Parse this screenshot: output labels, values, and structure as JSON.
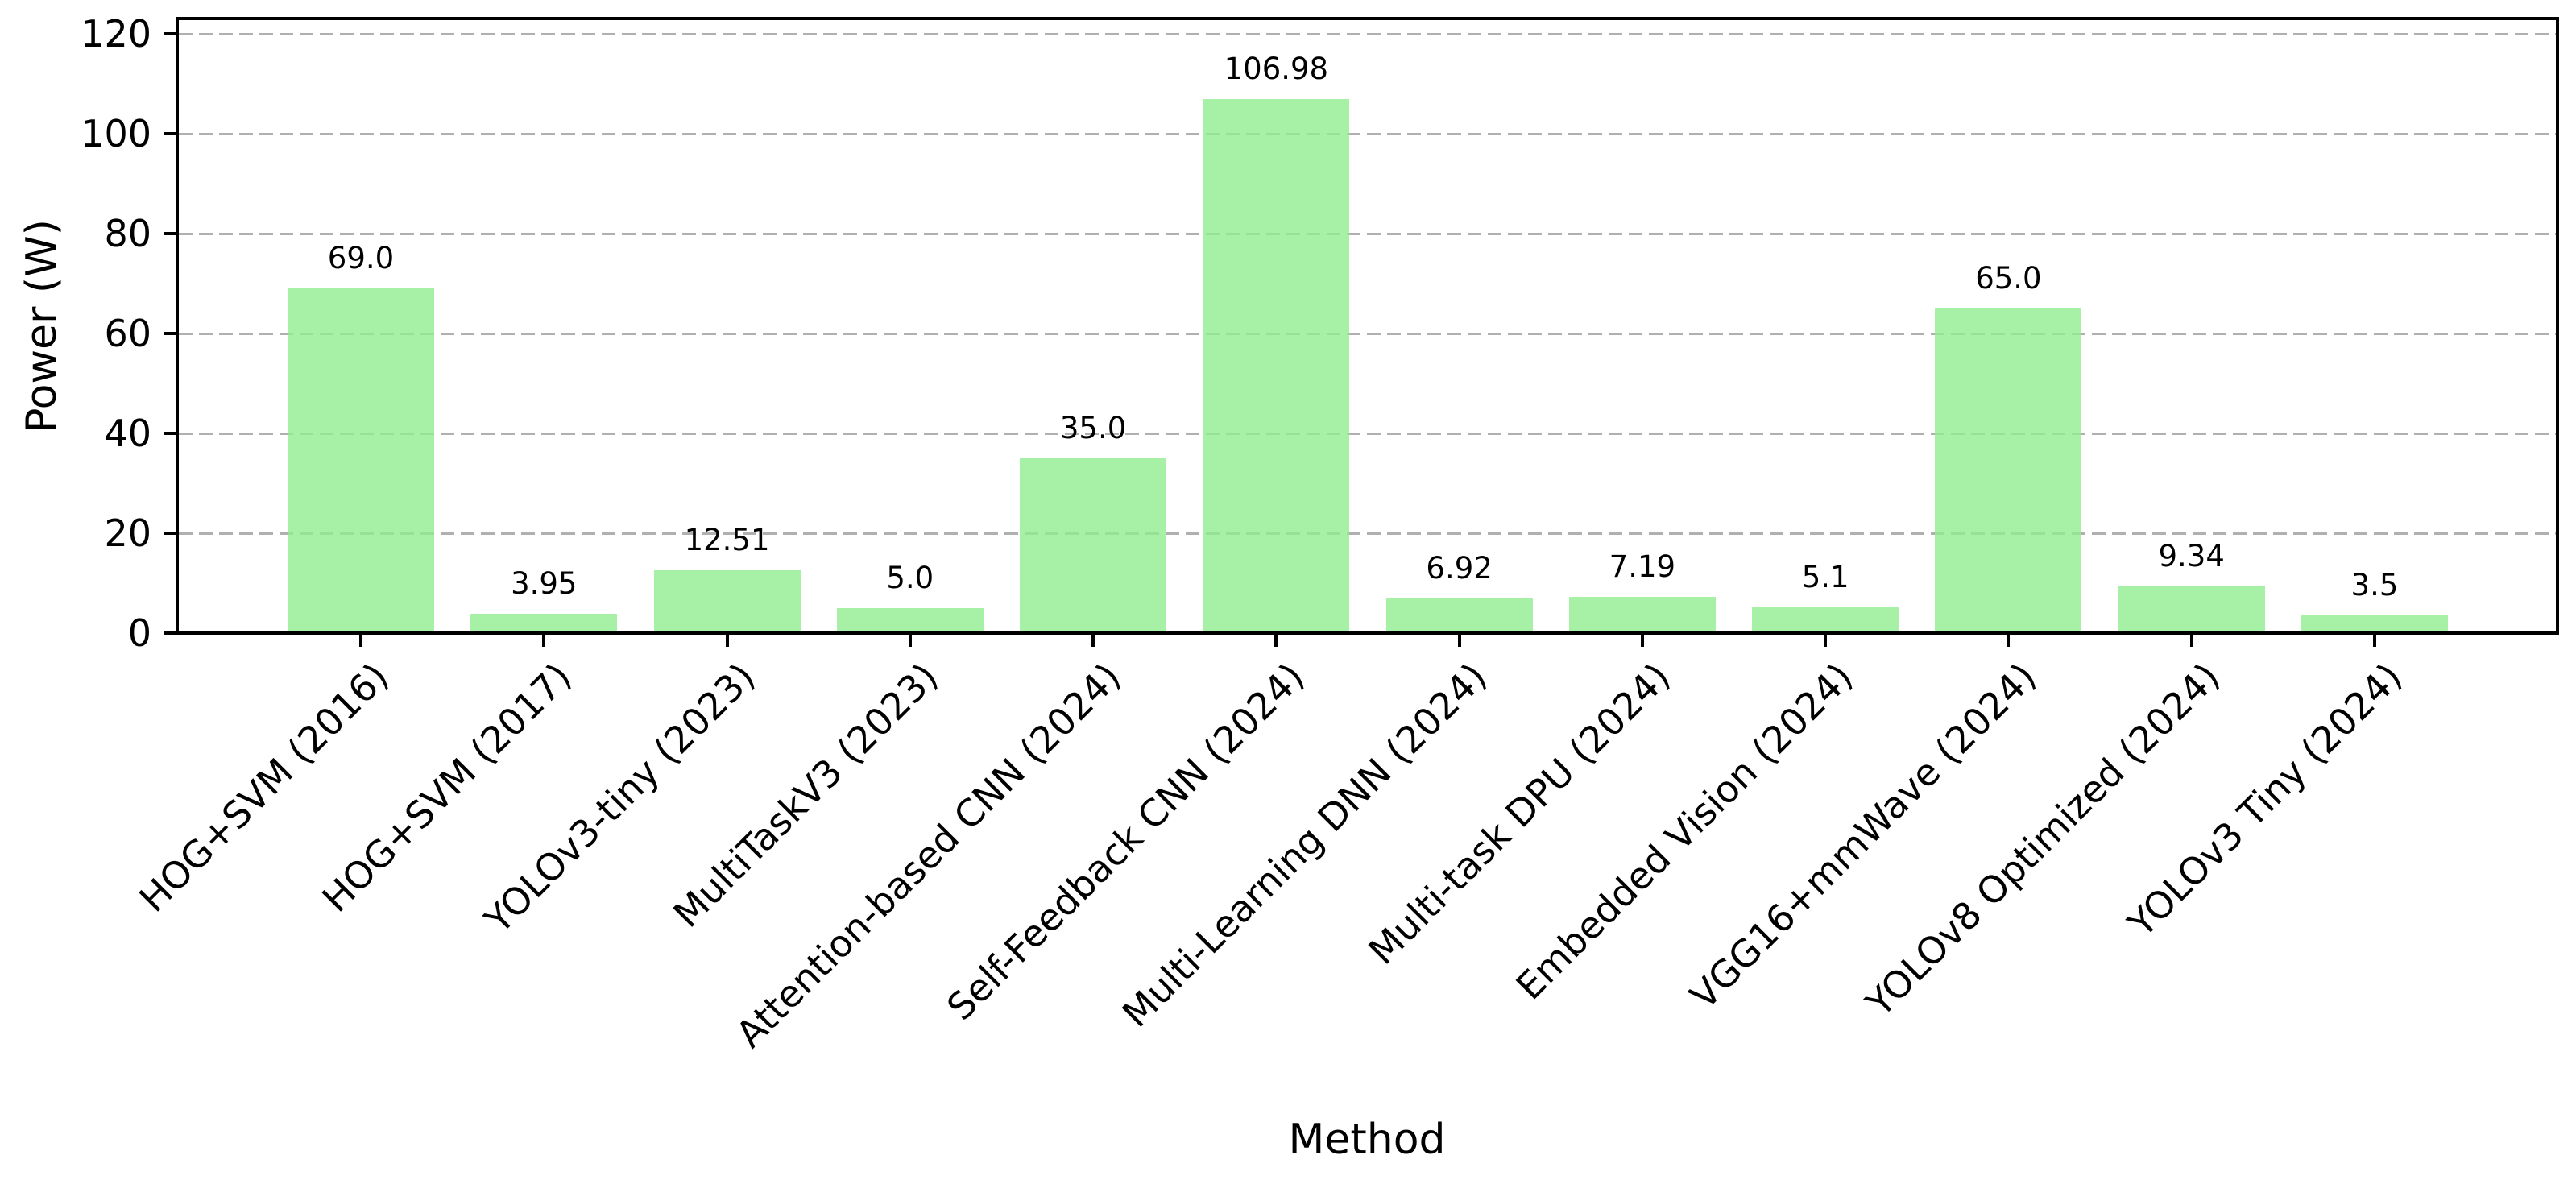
{
  "figure": {
    "xlabel": "Method",
    "ylabel": "Power (W)"
  },
  "chart_data": {
    "type": "bar",
    "title": "",
    "xlabel": "Method",
    "ylabel": "Power (W)",
    "categories": [
      "HOG+SVM (2016)",
      "HOG+SVM (2017)",
      "YOLOv3-tiny (2023)",
      "MultiTaskV3 (2023)",
      "Attention-based CNN (2024)",
      "Self-Feedback CNN (2024)",
      "Multi-Learning DNN (2024)",
      "Multi-task DPU (2024)",
      "Embedded Vision (2024)",
      "VGG16+mmWave (2024)",
      "YOLOv8 Optimized (2024)",
      "YOLOv3 Tiny (2024)"
    ],
    "values": [
      69.0,
      3.95,
      12.51,
      5.0,
      35.0,
      106.98,
      6.92,
      7.19,
      5.1,
      65.0,
      9.34,
      3.5
    ],
    "value_labels": [
      "69.0",
      "3.95",
      "12.51",
      "5.0",
      "35.0",
      "106.98",
      "6.92",
      "7.19",
      "5.1",
      "65.0",
      "9.34",
      "3.5"
    ],
    "yticks": [
      0,
      20,
      40,
      60,
      80,
      100,
      120
    ],
    "ytick_labels": [
      "0",
      "20",
      "40",
      "60",
      "80",
      "100",
      "120"
    ],
    "ylim": [
      0,
      123.1
    ],
    "bar_color": "#90EE90",
    "bar_alpha": 0.8,
    "grid": {
      "axis": "y",
      "style": "dashed",
      "color": "#b0b0b0"
    },
    "legend": null
  }
}
